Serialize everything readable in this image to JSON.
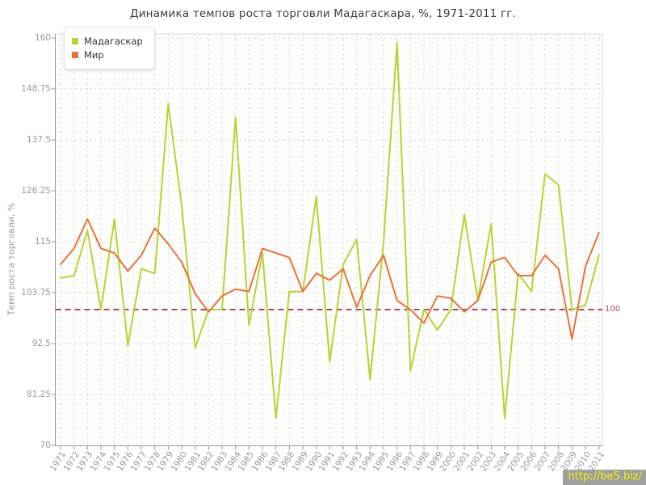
{
  "title": "Динамика темпов роста торговли Мадагаскара, %, 1971-2011 гг.",
  "legend": {
    "items": [
      {
        "label": "Мадагаскар",
        "color": "#b9d333"
      },
      {
        "label": "Мир",
        "color": "#e8723c"
      }
    ]
  },
  "watermark": {
    "text": "http://be5.biz/"
  },
  "chart_data": {
    "type": "line",
    "title": "Динамика темпов роста торговли Мадагаскара, %, 1971-2011 гг.",
    "xlabel": "",
    "ylabel": "Темп роста торговли, %",
    "ylim": [
      70,
      160
    ],
    "yticks": [
      70,
      81.25,
      92.5,
      103.75,
      115,
      126.25,
      137.5,
      148.75,
      160
    ],
    "grid": true,
    "legend_position": "top-left",
    "ref_line": {
      "value": 100,
      "label": "100",
      "color": "#a34e5e"
    },
    "x": [
      1971,
      1972,
      1973,
      1974,
      1975,
      1976,
      1977,
      1978,
      1979,
      1980,
      1981,
      1982,
      1983,
      1984,
      1985,
      1986,
      1987,
      1988,
      1989,
      1990,
      1991,
      1992,
      1993,
      1994,
      1995,
      1996,
      1997,
      1998,
      1999,
      2000,
      2001,
      2002,
      2003,
      2004,
      2005,
      2006,
      2007,
      2008,
      2009,
      2010,
      2011
    ],
    "series": [
      {
        "name": "Мадагаскар",
        "color": "#b9d333",
        "values": [
          107,
          107.5,
          117.5,
          100,
          120,
          92,
          109,
          108,
          145.5,
          123,
          91.5,
          100,
          100,
          142.5,
          96.5,
          112.5,
          76,
          104,
          104,
          125,
          88.5,
          110,
          115.5,
          84.5,
          115,
          159,
          86.5,
          100,
          95.5,
          100,
          121,
          102,
          119,
          76,
          108,
          104,
          130,
          127.5,
          100,
          101,
          112
        ]
      },
      {
        "name": "Мир",
        "color": "#e8723c",
        "values": [
          110,
          113.5,
          120,
          113.5,
          112.5,
          108.5,
          112,
          118,
          114.5,
          110.5,
          103.5,
          99.5,
          103,
          104.5,
          104,
          113.5,
          112.5,
          111.5,
          104,
          108,
          106.5,
          109,
          100.5,
          107.5,
          112,
          102,
          100,
          97,
          103,
          102.5,
          99.5,
          102,
          110.5,
          111.5,
          107.5,
          107.5,
          112,
          109,
          93.5,
          109.5,
          117
        ]
      }
    ]
  }
}
